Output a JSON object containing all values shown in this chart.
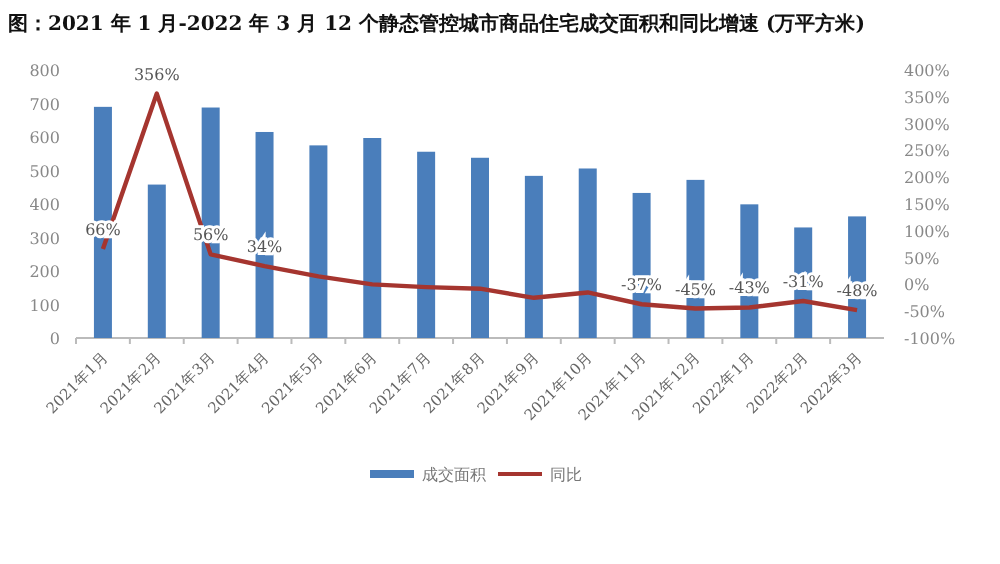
{
  "chart_data": {
    "type": "bar",
    "title": "图：2021 年 1 月-2022 年 3 月 12 个静态管控城市商品住宅成交面积和同比增速 (万平方米)",
    "categories": [
      "2021年1月",
      "2021年2月",
      "2021年3月",
      "2021年4月",
      "2021年5月",
      "2021年6月",
      "2021年7月",
      "2021年8月",
      "2021年9月",
      "2021年10月",
      "2021年11月",
      "2021年12月",
      "2022年1月",
      "2022年2月",
      "2022年3月"
    ],
    "series": [
      {
        "name": "成交面积",
        "color": "#4a7ebb",
        "values": [
          690,
          458,
          688,
          615,
          575,
          597,
          556,
          538,
          484,
          506,
          433,
          472,
          399,
          330,
          363
        ]
      },
      {
        "name": "同比",
        "type": "line",
        "axis": "y2",
        "color": "#a5352f",
        "values": [
          66,
          356,
          56,
          34,
          15,
          0,
          -5,
          -8,
          -25,
          -15,
          -37,
          -45,
          -43,
          -31,
          -48
        ],
        "value_labels": [
          "66%",
          "356%",
          "56%",
          "34%",
          null,
          null,
          null,
          null,
          null,
          null,
          "-37%",
          "-45%",
          "-43%",
          "-31%",
          "-48%"
        ]
      }
    ],
    "ylim": [
      0,
      800
    ],
    "yticks": [
      0,
      100,
      200,
      300,
      400,
      500,
      600,
      700,
      800
    ],
    "y2lim": [
      -100,
      400
    ],
    "y2ticks": [
      {
        "value": -100,
        "label": "-100%"
      },
      {
        "value": -50,
        "label": "-50%"
      },
      {
        "value": 0,
        "label": "0%"
      },
      {
        "value": 50,
        "label": "50%"
      },
      {
        "value": 100,
        "label": "100%"
      },
      {
        "value": 150,
        "label": "150%"
      },
      {
        "value": 200,
        "label": "200%"
      },
      {
        "value": 250,
        "label": "250%"
      },
      {
        "value": 300,
        "label": "300%"
      },
      {
        "value": 350,
        "label": "350%"
      },
      {
        "value": 400,
        "label": "400%"
      }
    ],
    "legend": "bottom",
    "grid": false
  }
}
